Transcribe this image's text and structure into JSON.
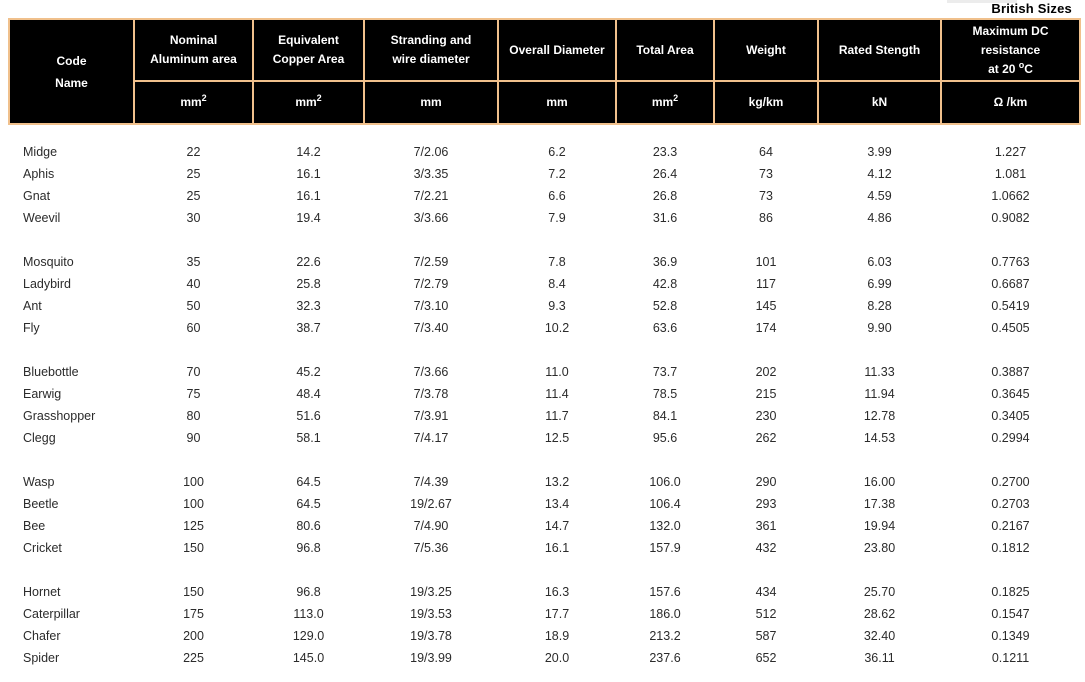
{
  "caption": "British Sizes",
  "colors": {
    "table_border": "#F0C08C",
    "header_bg": "#000000",
    "header_text": "#FFFFFF",
    "body_text": "#2B2B2B"
  },
  "table": {
    "header": {
      "columns": [
        {
          "id": "code-name",
          "title_lines": [
            "Code",
            "Name"
          ],
          "unit": ""
        },
        {
          "id": "nominal-aluminum-area",
          "title_lines": [
            "Nominal",
            "Aluminum area"
          ],
          "unit": "mm",
          "unit_sup": "2"
        },
        {
          "id": "equivalent-copper-area",
          "title_lines": [
            "Equivalent",
            "Copper Area"
          ],
          "unit": "mm",
          "unit_sup": "2"
        },
        {
          "id": "stranding-and-wire-diameter",
          "title_lines": [
            "Stranding and",
            "wire diameter"
          ],
          "unit": "mm"
        },
        {
          "id": "overall-diameter",
          "title_lines": [
            "Overall Diameter"
          ],
          "unit": "mm"
        },
        {
          "id": "total-area",
          "title_lines": [
            "Total Area"
          ],
          "unit": "mm",
          "unit_sup": "2"
        },
        {
          "id": "weight",
          "title_lines": [
            "Weight"
          ],
          "unit": "kg/km"
        },
        {
          "id": "rated-stength",
          "title_lines": [
            "Rated Stength"
          ],
          "unit": "kN"
        },
        {
          "id": "maximum-dc-resistance",
          "title_lines": [
            "Maximum DC",
            "resistance"
          ],
          "title_line3_pre": "at 20 ",
          "title_line3_sup": "o",
          "title_line3_post": "C",
          "unit": "Ω /km"
        }
      ]
    },
    "row_groups": [
      {
        "rows": [
          [
            "Midge",
            "22",
            "14.2",
            "7/2.06",
            "6.2",
            "23.3",
            "64",
            "3.99",
            "1.227"
          ],
          [
            "Aphis",
            "25",
            "16.1",
            "3/3.35",
            "7.2",
            "26.4",
            "73",
            "4.12",
            "1.081"
          ],
          [
            "Gnat",
            "25",
            "16.1",
            "7/2.21",
            "6.6",
            "26.8",
            "73",
            "4.59",
            "1.0662"
          ],
          [
            "Weevil",
            "30",
            "19.4",
            "3/3.66",
            "7.9",
            "31.6",
            "86",
            "4.86",
            "0.9082"
          ]
        ]
      },
      {
        "rows": [
          [
            "Mosquito",
            "35",
            "22.6",
            "7/2.59",
            "7.8",
            "36.9",
            "101",
            "6.03",
            "0.7763"
          ],
          [
            "Ladybird",
            "40",
            "25.8",
            "7/2.79",
            "8.4",
            "42.8",
            "117",
            "6.99",
            "0.6687"
          ],
          [
            "Ant",
            "50",
            "32.3",
            "7/3.10",
            "9.3",
            "52.8",
            "145",
            "8.28",
            "0.5419"
          ],
          [
            "Fly",
            "60",
            "38.7",
            "7/3.40",
            "10.2",
            "63.6",
            "174",
            "9.90",
            "0.4505"
          ]
        ]
      },
      {
        "rows": [
          [
            "Bluebottle",
            "70",
            "45.2",
            "7/3.66",
            "11.0",
            "73.7",
            "202",
            "11.33",
            "0.3887"
          ],
          [
            "Earwig",
            "75",
            "48.4",
            "7/3.78",
            "11.4",
            "78.5",
            "215",
            "11.94",
            "0.3645"
          ],
          [
            "Grasshopper",
            "80",
            "51.6",
            "7/3.91",
            "11.7",
            "84.1",
            "230",
            "12.78",
            "0.3405"
          ],
          [
            "Clegg",
            "90",
            "58.1",
            "7/4.17",
            "12.5",
            "95.6",
            "262",
            "14.53",
            "0.2994"
          ]
        ]
      },
      {
        "rows": [
          [
            "Wasp",
            "100",
            "64.5",
            "7/4.39",
            "13.2",
            "106.0",
            "290",
            "16.00",
            "0.2700"
          ],
          [
            "Beetle",
            "100",
            "64.5",
            "19/2.67",
            "13.4",
            "106.4",
            "293",
            "17.38",
            "0.2703"
          ],
          [
            "Bee",
            "125",
            "80.6",
            "7/4.90",
            "14.7",
            "132.0",
            "361",
            "19.94",
            "0.2167"
          ],
          [
            "Cricket",
            "150",
            "96.8",
            "7/5.36",
            "16.1",
            "157.9",
            "432",
            "23.80",
            "0.1812"
          ]
        ]
      },
      {
        "rows": [
          [
            "Hornet",
            "150",
            "96.8",
            "19/3.25",
            "16.3",
            "157.6",
            "434",
            "25.70",
            "0.1825"
          ],
          [
            "Caterpillar",
            "175",
            "113.0",
            "19/3.53",
            "17.7",
            "186.0",
            "512",
            "28.62",
            "0.1547"
          ],
          [
            "Chafer",
            "200",
            "129.0",
            "19/3.78",
            "18.9",
            "213.2",
            "587",
            "32.40",
            "0.1349"
          ],
          [
            "Spider",
            "225",
            "145.0",
            "19/3.99",
            "20.0",
            "237.6",
            "652",
            "36.11",
            "0.1211"
          ]
        ]
      }
    ]
  }
}
